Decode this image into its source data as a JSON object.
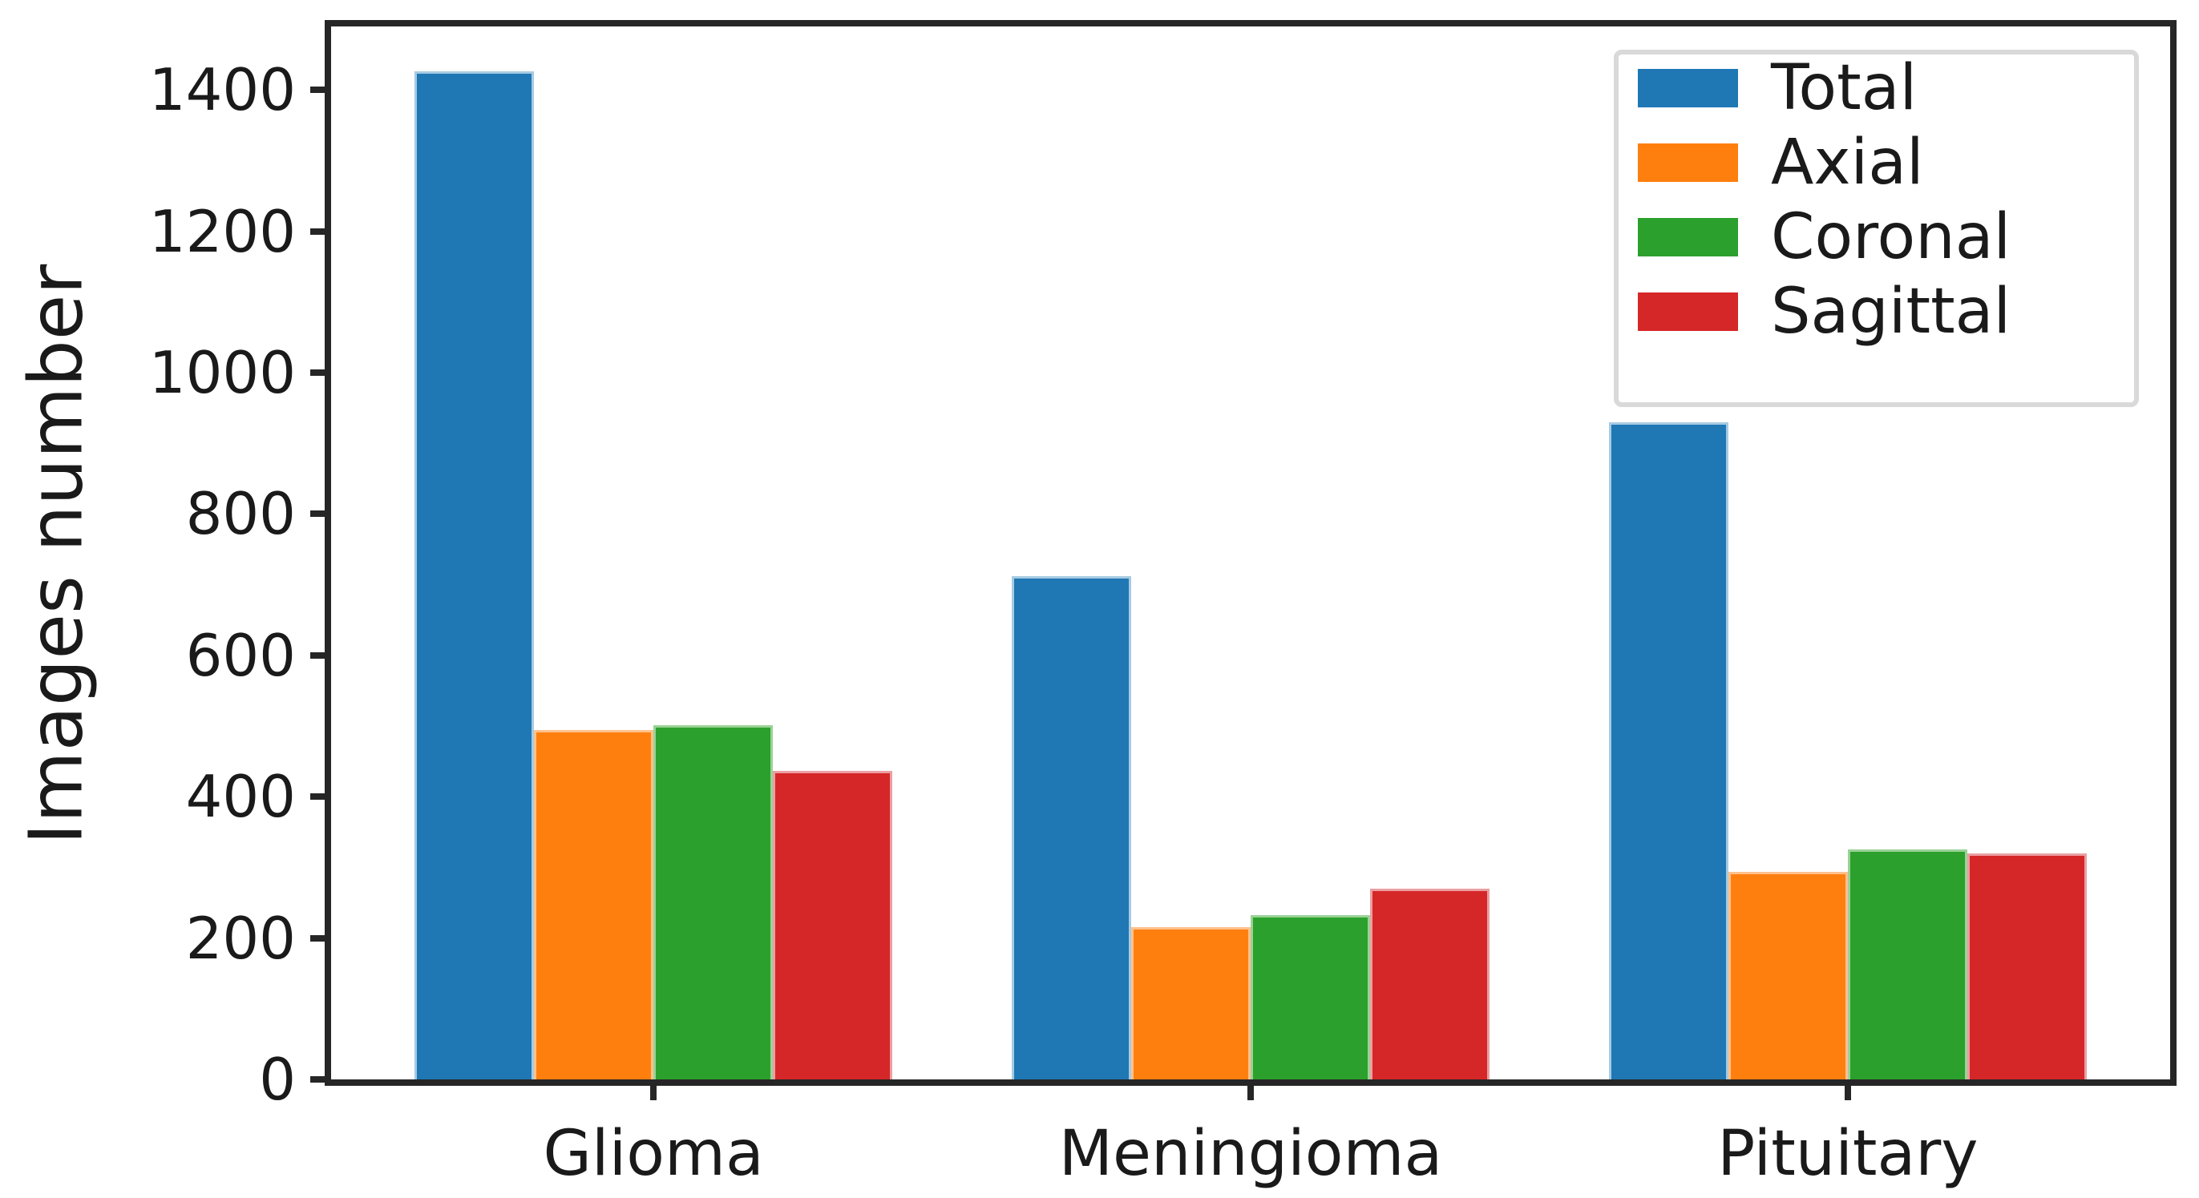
{
  "chart_data": {
    "type": "bar",
    "title": "",
    "ylabel": "Images number",
    "xlabel": "",
    "categories": [
      "Glioma",
      "Meningioma",
      "Pituitary"
    ],
    "series": [
      {
        "name": "Total",
        "color": "#1f77b4",
        "edge_color": "#a6cbe3",
        "values": [
          1426,
          712,
          930
        ]
      },
      {
        "name": "Axial",
        "color": "#ff7f0e",
        "edge_color": "#ffc18c",
        "values": [
          494,
          215,
          294
        ]
      },
      {
        "name": "Coronal",
        "color": "#2ca02c",
        "edge_color": "#9ad297",
        "values": [
          501,
          232,
          326
        ]
      },
      {
        "name": "Sagittal",
        "color": "#d62728",
        "edge_color": "#eb9fa2",
        "values": [
          437,
          270,
          320
        ]
      }
    ],
    "yticks": [
      0,
      200,
      400,
      600,
      800,
      1000,
      1200,
      1400
    ],
    "ylim": [
      0,
      1490
    ],
    "grid": false,
    "legend_position": "upper right",
    "axis_color": "#262626",
    "text_color": "#1a1a1a",
    "background_color": "#ffffff"
  }
}
